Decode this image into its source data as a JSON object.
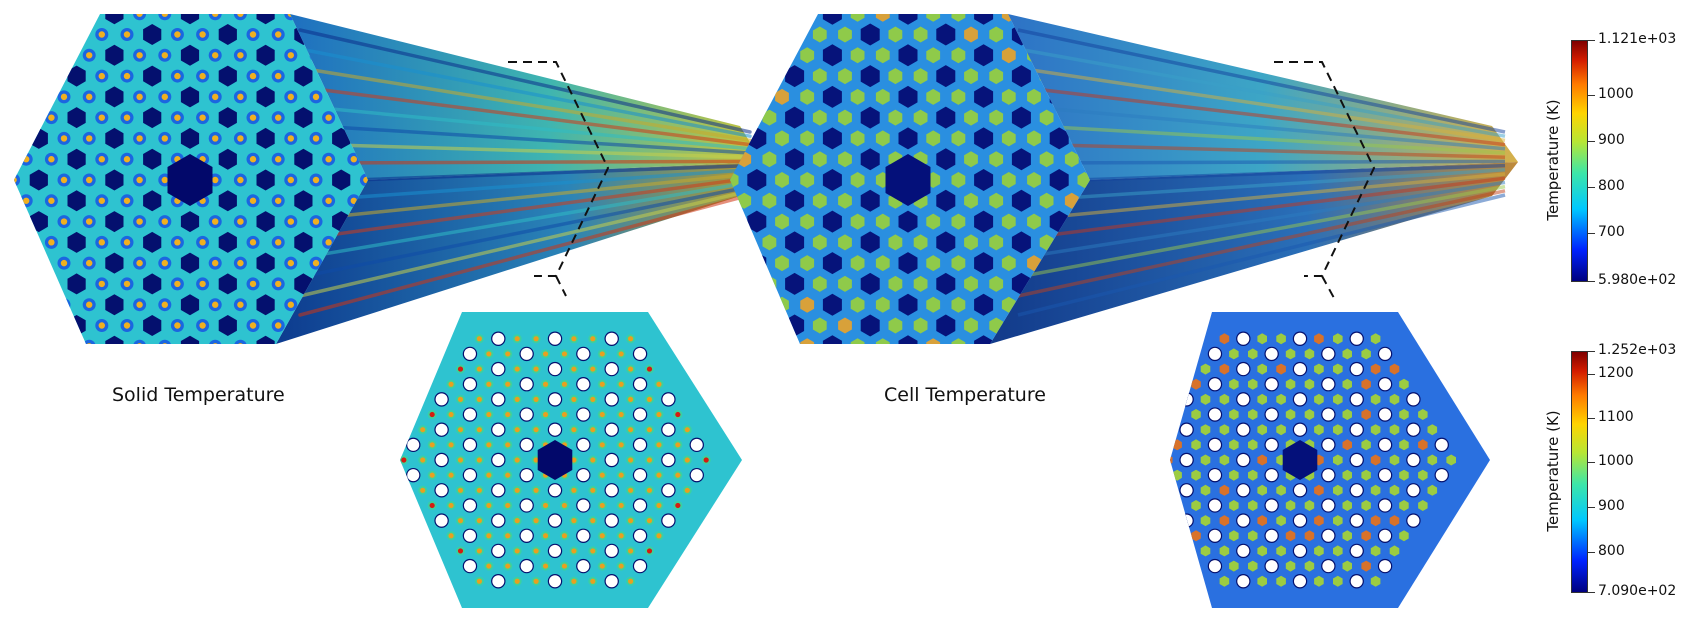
{
  "labels": {
    "solid": "Solid Temperature",
    "cell": "Cell Temperature"
  },
  "colorbars": {
    "top": {
      "title": "Temperature (K)",
      "min_label": "5.980e+02",
      "max_label": "1.121e+03",
      "ticks": [
        "1000",
        "900",
        "800",
        "700"
      ]
    },
    "bottom": {
      "title": "Temperature (K)",
      "min_label": "7.090e+02",
      "max_label": "1.252e+03",
      "ticks": [
        "1200",
        "1100",
        "1000",
        "900",
        "800"
      ]
    }
  },
  "colormap": [
    "#00007f",
    "#0022ff",
    "#00c8ff",
    "#3de6a8",
    "#b7e635",
    "#ffd400",
    "#ff7a00",
    "#d31c00",
    "#7f0000"
  ]
}
